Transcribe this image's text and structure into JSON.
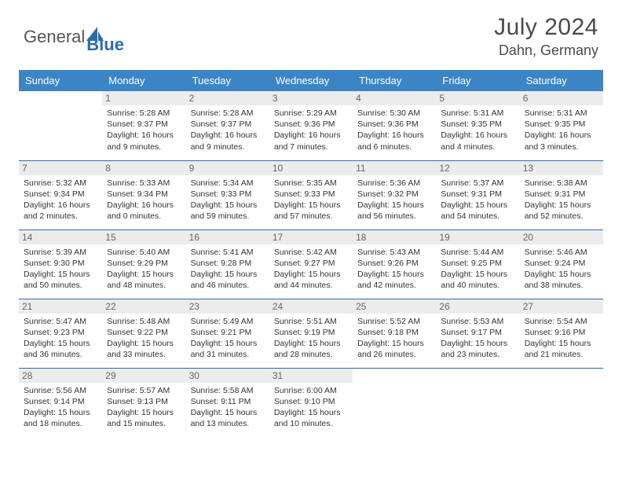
{
  "brand": {
    "part1": "General",
    "part2": "Blue"
  },
  "title": "July 2024",
  "location": "Dahn, Germany",
  "colors": {
    "header_bg": "#3b85c6",
    "border": "#2a6cb3",
    "daynum_bg": "#ececec",
    "text": "#333333",
    "title_color": "#4a4a4a"
  },
  "day_headers": [
    "Sunday",
    "Monday",
    "Tuesday",
    "Wednesday",
    "Thursday",
    "Friday",
    "Saturday"
  ],
  "weeks": [
    [
      {
        "n": "",
        "sr": "",
        "ss": "",
        "dl": ""
      },
      {
        "n": "1",
        "sr": "5:28 AM",
        "ss": "9:37 PM",
        "dl": "16 hours and 9 minutes."
      },
      {
        "n": "2",
        "sr": "5:28 AM",
        "ss": "9:37 PM",
        "dl": "16 hours and 9 minutes."
      },
      {
        "n": "3",
        "sr": "5:29 AM",
        "ss": "9:36 PM",
        "dl": "16 hours and 7 minutes."
      },
      {
        "n": "4",
        "sr": "5:30 AM",
        "ss": "9:36 PM",
        "dl": "16 hours and 6 minutes."
      },
      {
        "n": "5",
        "sr": "5:31 AM",
        "ss": "9:35 PM",
        "dl": "16 hours and 4 minutes."
      },
      {
        "n": "6",
        "sr": "5:31 AM",
        "ss": "9:35 PM",
        "dl": "16 hours and 3 minutes."
      }
    ],
    [
      {
        "n": "7",
        "sr": "5:32 AM",
        "ss": "9:34 PM",
        "dl": "16 hours and 2 minutes."
      },
      {
        "n": "8",
        "sr": "5:33 AM",
        "ss": "9:34 PM",
        "dl": "16 hours and 0 minutes."
      },
      {
        "n": "9",
        "sr": "5:34 AM",
        "ss": "9:33 PM",
        "dl": "15 hours and 59 minutes."
      },
      {
        "n": "10",
        "sr": "5:35 AM",
        "ss": "9:33 PM",
        "dl": "15 hours and 57 minutes."
      },
      {
        "n": "11",
        "sr": "5:36 AM",
        "ss": "9:32 PM",
        "dl": "15 hours and 56 minutes."
      },
      {
        "n": "12",
        "sr": "5:37 AM",
        "ss": "9:31 PM",
        "dl": "15 hours and 54 minutes."
      },
      {
        "n": "13",
        "sr": "5:38 AM",
        "ss": "9:31 PM",
        "dl": "15 hours and 52 minutes."
      }
    ],
    [
      {
        "n": "14",
        "sr": "5:39 AM",
        "ss": "9:30 PM",
        "dl": "15 hours and 50 minutes."
      },
      {
        "n": "15",
        "sr": "5:40 AM",
        "ss": "9:29 PM",
        "dl": "15 hours and 48 minutes."
      },
      {
        "n": "16",
        "sr": "5:41 AM",
        "ss": "9:28 PM",
        "dl": "15 hours and 46 minutes."
      },
      {
        "n": "17",
        "sr": "5:42 AM",
        "ss": "9:27 PM",
        "dl": "15 hours and 44 minutes."
      },
      {
        "n": "18",
        "sr": "5:43 AM",
        "ss": "9:26 PM",
        "dl": "15 hours and 42 minutes."
      },
      {
        "n": "19",
        "sr": "5:44 AM",
        "ss": "9:25 PM",
        "dl": "15 hours and 40 minutes."
      },
      {
        "n": "20",
        "sr": "5:46 AM",
        "ss": "9:24 PM",
        "dl": "15 hours and 38 minutes."
      }
    ],
    [
      {
        "n": "21",
        "sr": "5:47 AM",
        "ss": "9:23 PM",
        "dl": "15 hours and 36 minutes."
      },
      {
        "n": "22",
        "sr": "5:48 AM",
        "ss": "9:22 PM",
        "dl": "15 hours and 33 minutes."
      },
      {
        "n": "23",
        "sr": "5:49 AM",
        "ss": "9:21 PM",
        "dl": "15 hours and 31 minutes."
      },
      {
        "n": "24",
        "sr": "5:51 AM",
        "ss": "9:19 PM",
        "dl": "15 hours and 28 minutes."
      },
      {
        "n": "25",
        "sr": "5:52 AM",
        "ss": "9:18 PM",
        "dl": "15 hours and 26 minutes."
      },
      {
        "n": "26",
        "sr": "5:53 AM",
        "ss": "9:17 PM",
        "dl": "15 hours and 23 minutes."
      },
      {
        "n": "27",
        "sr": "5:54 AM",
        "ss": "9:16 PM",
        "dl": "15 hours and 21 minutes."
      }
    ],
    [
      {
        "n": "28",
        "sr": "5:56 AM",
        "ss": "9:14 PM",
        "dl": "15 hours and 18 minutes."
      },
      {
        "n": "29",
        "sr": "5:57 AM",
        "ss": "9:13 PM",
        "dl": "15 hours and 15 minutes."
      },
      {
        "n": "30",
        "sr": "5:58 AM",
        "ss": "9:11 PM",
        "dl": "15 hours and 13 minutes."
      },
      {
        "n": "31",
        "sr": "6:00 AM",
        "ss": "9:10 PM",
        "dl": "15 hours and 10 minutes."
      },
      {
        "n": "",
        "sr": "",
        "ss": "",
        "dl": ""
      },
      {
        "n": "",
        "sr": "",
        "ss": "",
        "dl": ""
      },
      {
        "n": "",
        "sr": "",
        "ss": "",
        "dl": ""
      }
    ]
  ],
  "labels": {
    "sunrise": "Sunrise: ",
    "sunset": "Sunset: ",
    "daylight": "Daylight: "
  }
}
